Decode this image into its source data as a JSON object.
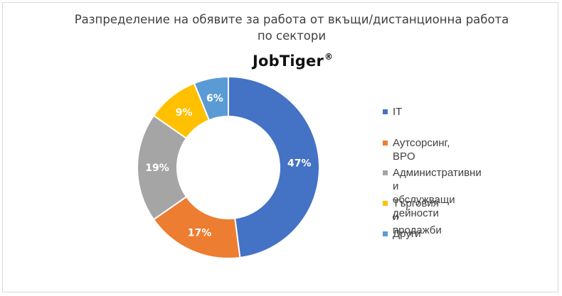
{
  "chart_data": {
    "type": "pie",
    "title": "Разпределение на обявите за работа от вкъщи/дистанционна работа по сектори",
    "title_lines": [
      "Разпределение на обявите за работа от вкъщи/дистанционна работа",
      "по сектори"
    ],
    "logo_text": "JobTiger",
    "logo_mark": "®",
    "donut": true,
    "legend_position": "right",
    "categories": [
      "IT",
      "Аутсорсинг, BPO",
      "Административни и обслужващи дейности",
      "Търговия и продажби",
      "Други"
    ],
    "legend_labels": [
      "IT",
      "Аутсорсинг, BPO",
      "Административни и\nобслужващи дейности",
      "Търговия и продажби",
      "Други"
    ],
    "values": [
      47,
      17,
      19,
      9,
      6
    ],
    "data_labels": [
      "47%",
      "17%",
      "19%",
      "9%",
      "6%"
    ],
    "colors": [
      "#4472c4",
      "#ed7d31",
      "#a5a5a5",
      "#ffc000",
      "#5b9bd5"
    ]
  }
}
